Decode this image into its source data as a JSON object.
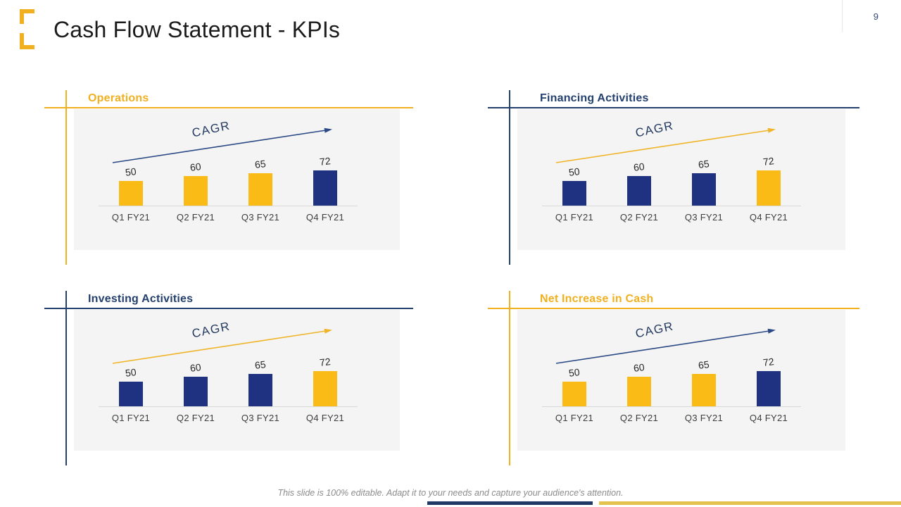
{
  "header": {
    "title": "Cash Flow Statement - KPIs",
    "page_number": "9"
  },
  "footer": {
    "note": "This slide is 100% editable. Adapt it to your needs and capture your audience's attention."
  },
  "colors": {
    "gold_accent": "#F0B01F",
    "navy_accent": "#24406E",
    "gold_bar": "#FBBB16",
    "navy_bar": "#1F3282",
    "arrow_gold": "#F0B429",
    "arrow_navy": "#2B4A85",
    "panel_bg": "#F4F4F4",
    "bottom_bar_navy": "#1F3864",
    "bottom_bar_gold": "#E3C24D"
  },
  "chart_data": [
    {
      "type": "bar",
      "title": "Operations",
      "accent": "gold",
      "annotation": "CAGR",
      "arrow_color": "navy",
      "categories": [
        "Q1 FY21",
        "Q2 FY21",
        "Q3 FY21",
        "Q4 FY21"
      ],
      "values": [
        50,
        60,
        65,
        72
      ],
      "bar_colors": [
        "gold",
        "gold",
        "gold",
        "navy"
      ],
      "ylim": [
        0,
        100
      ],
      "grid": false,
      "legend": "none"
    },
    {
      "type": "bar",
      "title": "Financing Activities",
      "accent": "navy",
      "annotation": "CAGR",
      "arrow_color": "gold",
      "categories": [
        "Q1 FY21",
        "Q2 FY21",
        "Q3 FY21",
        "Q4 FY21"
      ],
      "values": [
        50,
        60,
        65,
        72
      ],
      "bar_colors": [
        "navy",
        "navy",
        "navy",
        "gold"
      ],
      "ylim": [
        0,
        100
      ],
      "grid": false,
      "legend": "none"
    },
    {
      "type": "bar",
      "title": "Investing Activities",
      "accent": "navy",
      "annotation": "CAGR",
      "arrow_color": "gold",
      "categories": [
        "Q1 FY21",
        "Q2 FY21",
        "Q3 FY21",
        "Q4 FY21"
      ],
      "values": [
        50,
        60,
        65,
        72
      ],
      "bar_colors": [
        "navy",
        "navy",
        "navy",
        "gold"
      ],
      "ylim": [
        0,
        100
      ],
      "grid": false,
      "legend": "none"
    },
    {
      "type": "bar",
      "title": "Net Increase in Cash",
      "accent": "gold",
      "annotation": "CAGR",
      "arrow_color": "navy",
      "categories": [
        "Q1 FY21",
        "Q2 FY21",
        "Q3 FY21",
        "Q4 FY21"
      ],
      "values": [
        50,
        60,
        65,
        72
      ],
      "bar_colors": [
        "gold",
        "gold",
        "gold",
        "navy"
      ],
      "ylim": [
        0,
        100
      ],
      "grid": false,
      "legend": "none"
    }
  ]
}
